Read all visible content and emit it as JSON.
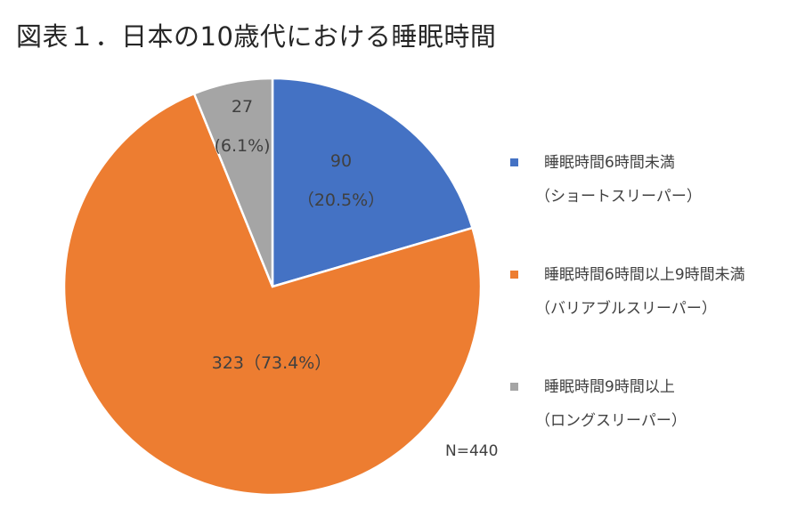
{
  "chart_data": {
    "type": "pie",
    "title": "図表１．日本の10歳代における睡眠時間",
    "total": 440,
    "n_label": "N=440",
    "slices": [
      {
        "name": "睡眠時間6時間未満",
        "subname": "（ショートスリーパー）",
        "value": 90,
        "percent": "20.5%",
        "value_label": "90",
        "percent_label": "（20.5%）",
        "color": "#4472C4"
      },
      {
        "name": "睡眠時間6時間以上9時間未満",
        "subname": "（バリアブルスリーパー）",
        "value": 323,
        "percent": "73.4%",
        "value_label": "323（73.4%）",
        "color": "#ED7D31"
      },
      {
        "name": "睡眠時間9時間以上",
        "subname": "（ロングスリーパー）",
        "value": 27,
        "percent": "6.1%",
        "value_label": "27",
        "percent_label": "(6.1%)",
        "color": "#A5A5A5"
      }
    ],
    "legend_position": "right"
  }
}
